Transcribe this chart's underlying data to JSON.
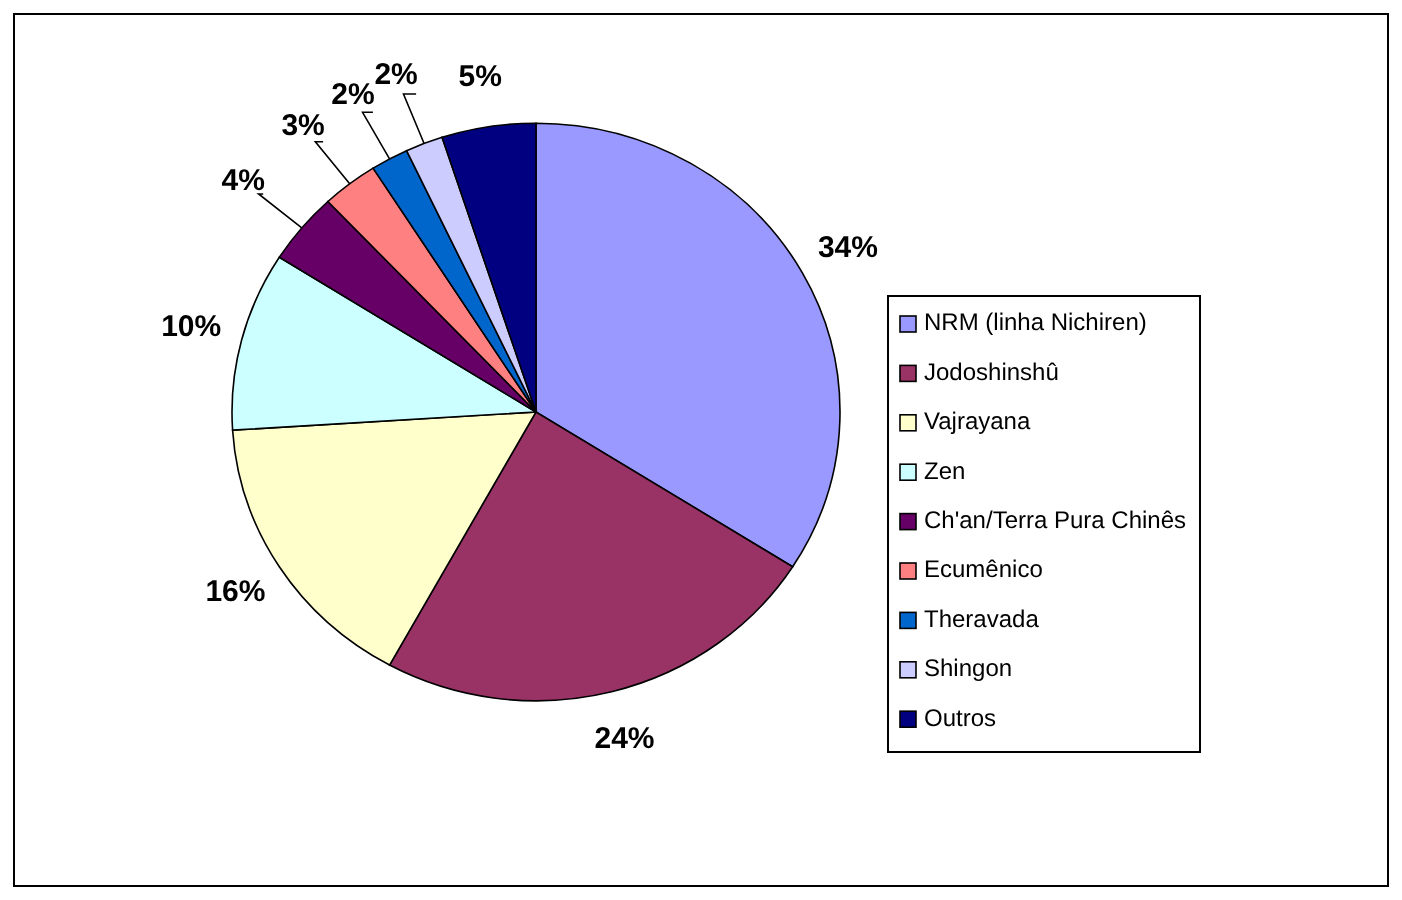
{
  "chart_data": {
    "type": "pie",
    "categories": [
      "NRM (linha Nichiren)",
      "Jodoshinshû",
      "Vajrayana",
      "Zen",
      "Ch'an/Terra Pura Chinês",
      "Ecumênico",
      "Theravada",
      "Shingon",
      "Outros"
    ],
    "values": [
      34,
      24,
      16,
      10,
      4,
      3,
      2,
      2,
      5
    ],
    "colors": [
      "#9999ff",
      "#993366",
      "#ffffcc",
      "#ccffff",
      "#660066",
      "#ff8080",
      "#0066cc",
      "#ccccff",
      "#000080"
    ],
    "value_labels": [
      "34%",
      "24%",
      "16%",
      "10%",
      "4%",
      "3%",
      "2%",
      "2%",
      "5%"
    ],
    "legend": "right"
  }
}
